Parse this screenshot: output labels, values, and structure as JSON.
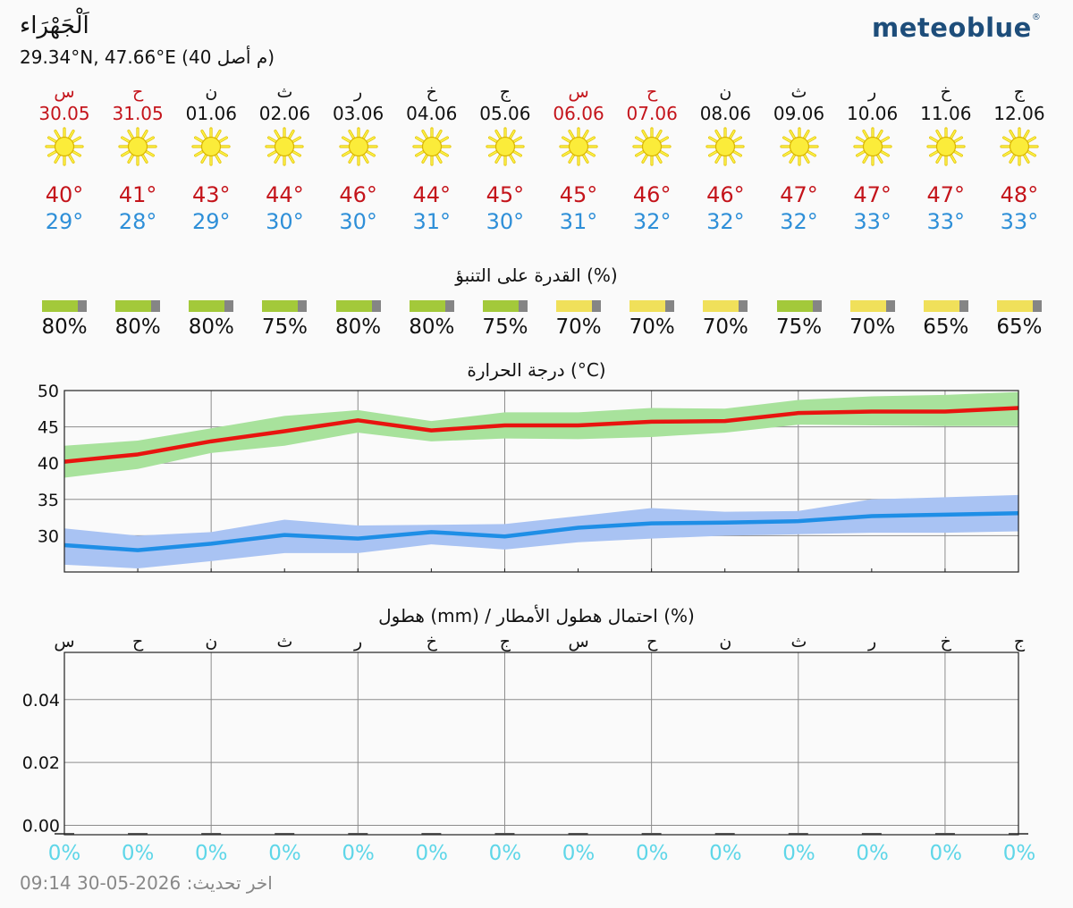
{
  "header": {
    "location": "اَلْجَهْرَاء",
    "coords": "29.34°N, 47.66°E (40 م أصل)",
    "logo": "meteoblue",
    "logo_mark": "®"
  },
  "icons": {
    "weather": "sun-icon"
  },
  "colors": {
    "max_temp": "#c4141b",
    "min_temp": "#2e8fd8",
    "weekend": "#c4141b",
    "pred_high": "#a3c93a",
    "pred_mid": "#f0e05a",
    "pred_rest": "#858585",
    "max_line": "#e8140f",
    "max_band": "#a8e29c",
    "min_line": "#1e8ee6",
    "min_band": "#a9c3f3",
    "rain_pct": "#5ed6e8"
  },
  "days": [
    {
      "name": "س",
      "date": "30.05",
      "max": "40°",
      "min": "29°",
      "pred": "80%",
      "weekend": true
    },
    {
      "name": "ح",
      "date": "31.05",
      "max": "41°",
      "min": "28°",
      "pred": "80%",
      "weekend": true
    },
    {
      "name": "ن",
      "date": "01.06",
      "max": "43°",
      "min": "29°",
      "pred": "80%",
      "weekend": false
    },
    {
      "name": "ث",
      "date": "02.06",
      "max": "44°",
      "min": "30°",
      "pred": "75%",
      "weekend": false
    },
    {
      "name": "ر",
      "date": "03.06",
      "max": "46°",
      "min": "30°",
      "pred": "80%",
      "weekend": false
    },
    {
      "name": "خ",
      "date": "04.06",
      "max": "44°",
      "min": "31°",
      "pred": "80%",
      "weekend": false
    },
    {
      "name": "ج",
      "date": "05.06",
      "max": "45°",
      "min": "30°",
      "pred": "75%",
      "weekend": false
    },
    {
      "name": "س",
      "date": "06.06",
      "max": "45°",
      "min": "31°",
      "pred": "70%",
      "weekend": true
    },
    {
      "name": "ح",
      "date": "07.06",
      "max": "46°",
      "min": "32°",
      "pred": "70%",
      "weekend": true
    },
    {
      "name": "ن",
      "date": "08.06",
      "max": "46°",
      "min": "32°",
      "pred": "70%",
      "weekend": false
    },
    {
      "name": "ث",
      "date": "09.06",
      "max": "47°",
      "min": "32°",
      "pred": "75%",
      "weekend": false
    },
    {
      "name": "ر",
      "date": "10.06",
      "max": "47°",
      "min": "33°",
      "pred": "70%",
      "weekend": false
    },
    {
      "name": "خ",
      "date": "11.06",
      "max": "47°",
      "min": "33°",
      "pred": "65%",
      "weekend": false
    },
    {
      "name": "ج",
      "date": "12.06",
      "max": "48°",
      "min": "33°",
      "pred": "65%",
      "weekend": false
    }
  ],
  "predictability": {
    "title": "القدرة على التنبؤ (%)"
  },
  "temperature_title": "درجة الحرارة (°C)",
  "precip_title": "هطول (mm) / احتمال هطول الأمطار (%)",
  "precip_day_labels": [
    "س",
    "ح",
    "ن",
    "ث",
    "ر",
    "خ",
    "ج",
    "س",
    "ح",
    "ن",
    "ث",
    "ر",
    "خ",
    "ج"
  ],
  "rain_probability": [
    "0%",
    "0%",
    "0%",
    "0%",
    "0%",
    "0%",
    "0%",
    "0%",
    "0%",
    "0%",
    "0%",
    "0%",
    "0%",
    "0%"
  ],
  "footer": {
    "updated": "اخر تحديث: 2026-05-30 09:14"
  },
  "chart_data": [
    {
      "type": "line",
      "title": "درجة الحرارة (°C)",
      "x": [
        "30.05",
        "31.05",
        "01.06",
        "02.06",
        "03.06",
        "04.06",
        "05.06",
        "06.06",
        "07.06",
        "08.06",
        "09.06",
        "10.06",
        "11.06",
        "12.06"
      ],
      "yticks": [
        30,
        35,
        40,
        45,
        50
      ],
      "ylim": [
        25,
        50
      ],
      "grid": true,
      "series": [
        {
          "values": [
            40.2,
            41.2,
            43.0,
            44.4,
            45.9,
            44.5,
            45.2,
            45.2,
            45.7,
            45.8,
            46.9,
            47.1,
            47.1,
            47.6
          ],
          "band_low": [
            38.0,
            39.2,
            41.4,
            42.4,
            44.2,
            43.0,
            43.4,
            43.3,
            43.6,
            44.2,
            45.3,
            45.2,
            45.1,
            45.1
          ],
          "band_high": [
            42.4,
            43.1,
            44.8,
            46.5,
            47.3,
            45.8,
            47.0,
            47.0,
            47.6,
            47.5,
            48.7,
            49.2,
            49.4,
            49.8
          ]
        },
        {
          "values": [
            28.7,
            28.0,
            28.9,
            30.1,
            29.6,
            30.5,
            29.9,
            31.1,
            31.7,
            31.8,
            32.0,
            32.7,
            32.9,
            33.1
          ],
          "band_low": [
            26.0,
            25.5,
            26.5,
            27.6,
            27.6,
            28.8,
            28.1,
            29.1,
            29.6,
            30.0,
            30.2,
            30.4,
            30.4,
            30.6
          ],
          "band_high": [
            31.0,
            30.0,
            30.5,
            32.2,
            31.4,
            31.5,
            31.6,
            32.7,
            33.8,
            33.3,
            33.4,
            35.0,
            35.3,
            35.6
          ]
        }
      ]
    },
    {
      "type": "bar",
      "title": "هطول (mm) / احتمال هطول الأمطار (%)",
      "categories": [
        "30.05",
        "31.05",
        "01.06",
        "02.06",
        "03.06",
        "04.06",
        "05.06",
        "06.06",
        "07.06",
        "08.06",
        "09.06",
        "10.06",
        "11.06",
        "12.06"
      ],
      "values": [
        0,
        0,
        0,
        0,
        0,
        0,
        0,
        0,
        0,
        0,
        0,
        0,
        0,
        0
      ],
      "yticks": [
        0.0,
        0.02,
        0.04
      ],
      "ylim": [
        -0.003,
        0.055
      ],
      "grid": true
    }
  ]
}
